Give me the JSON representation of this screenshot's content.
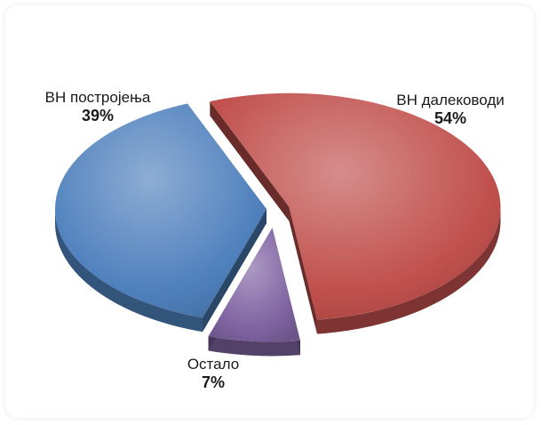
{
  "chart_data": {
    "type": "pie",
    "title": "",
    "categories": [
      "ВН далеководи",
      "Остало",
      "ВН постројења"
    ],
    "values": [
      54,
      7,
      39
    ],
    "value_labels": [
      "54%",
      "7%",
      "39%"
    ],
    "colors": [
      "#c0504d",
      "#8064a2",
      "#4f81bd"
    ],
    "exploded": true,
    "three_d": true
  }
}
